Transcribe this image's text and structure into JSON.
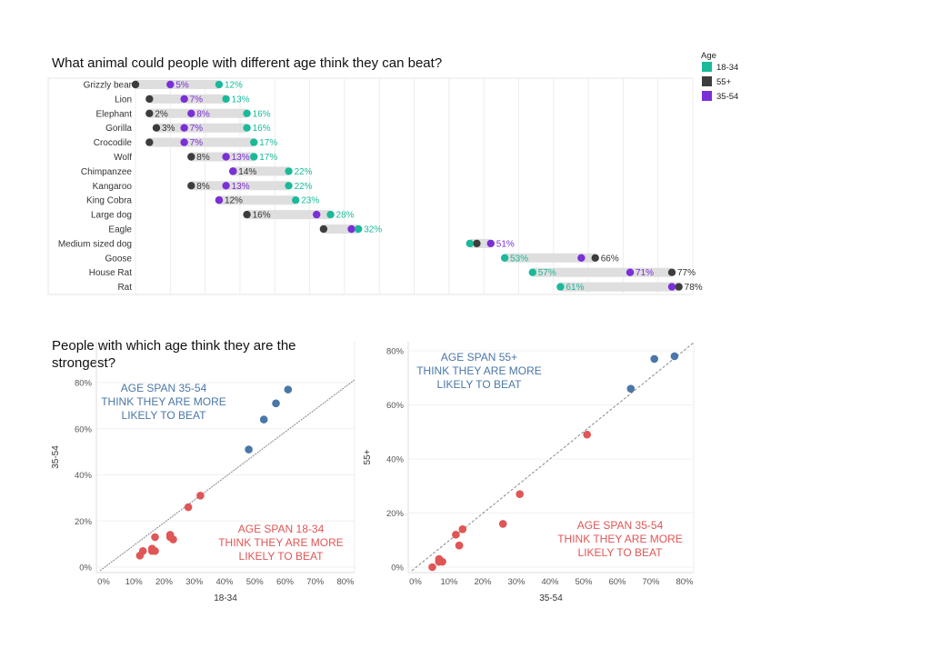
{
  "titles": {
    "top": "What animal could people with different age think they can beat?",
    "bottom_left": "People with which age think they are the strongest?"
  },
  "colors": {
    "18-34": "#1ab99a",
    "55+": "#3d3d3d",
    "35-54": "#7b2fd6",
    "blue": "#4a77a8",
    "red": "#e05656",
    "band": "#dedede"
  },
  "legend": {
    "title": "Age",
    "items": [
      {
        "label": "18-34",
        "color": "#1ab99a"
      },
      {
        "label": "55+",
        "color": "#3d3d3d"
      },
      {
        "label": "35-54",
        "color": "#7b2fd6"
      }
    ]
  },
  "chart_data": [
    {
      "type": "dumbbell",
      "title": "What animal could people with different age think they can beat?",
      "xlim": [
        0,
        80
      ],
      "grid": true,
      "legend_position": "top-right",
      "rows": [
        {
          "animal": "Grizzly bear",
          "a1834": 12,
          "a55": 0,
          "a3554": 5,
          "labels": [
            "5%",
            "12%"
          ]
        },
        {
          "animal": "Lion",
          "a1834": 13,
          "a55": 2,
          "a3554": 7,
          "labels": [
            "7%",
            "13%"
          ]
        },
        {
          "animal": "Elephant",
          "a1834": 16,
          "a55": 2,
          "a3554": 8,
          "labels": [
            "2%",
            "8%",
            "16%"
          ]
        },
        {
          "animal": "Gorilla",
          "a1834": 16,
          "a55": 3,
          "a3554": 7,
          "labels": [
            "3%",
            "7%",
            "16%"
          ]
        },
        {
          "animal": "Crocodile",
          "a1834": 17,
          "a55": 2,
          "a3554": 7,
          "labels": [
            "7%",
            "17%"
          ]
        },
        {
          "animal": "Wolf",
          "a1834": 17,
          "a55": 8,
          "a3554": 13,
          "labels": [
            "8%",
            "13%",
            "17%"
          ]
        },
        {
          "animal": "Chimpanzee",
          "a1834": 22,
          "a55": 14,
          "a3554": 14,
          "labels": [
            "14%",
            "22%"
          ]
        },
        {
          "animal": "Kangaroo",
          "a1834": 22,
          "a55": 8,
          "a3554": 13,
          "labels": [
            "8%",
            "13%",
            "22%"
          ]
        },
        {
          "animal": "King Cobra",
          "a1834": 23,
          "a55": 12,
          "a3554": 12,
          "labels": [
            "12%",
            "23%"
          ]
        },
        {
          "animal": "Large dog",
          "a1834": 28,
          "a55": 16,
          "a3554": 26,
          "labels": [
            "16%",
            "28%"
          ]
        },
        {
          "animal": "Eagle",
          "a1834": 32,
          "a55": 27,
          "a3554": 31,
          "labels": [
            "32%"
          ]
        },
        {
          "animal": "Medium sized dog",
          "a1834": 48,
          "a55": 49,
          "a3554": 51,
          "labels": [
            "51%"
          ]
        },
        {
          "animal": "Goose",
          "a1834": 53,
          "a55": 66,
          "a3554": 64,
          "labels": [
            "53%",
            "66%"
          ]
        },
        {
          "animal": "House Rat",
          "a1834": 57,
          "a55": 77,
          "a3554": 71,
          "labels": [
            "57%",
            "71%",
            "77%"
          ]
        },
        {
          "animal": "Rat",
          "a1834": 61,
          "a55": 78,
          "a3554": 77,
          "labels": [
            "61%",
            "78%"
          ]
        }
      ]
    },
    {
      "type": "scatter",
      "x_label": "18-34",
      "y_label": "35-54",
      "xlim": [
        0,
        80
      ],
      "ylim": [
        0,
        80
      ],
      "x_ticks": [
        "0%",
        "10%",
        "20%",
        "30%",
        "40%",
        "50%",
        "60%",
        "70%",
        "80%"
      ],
      "y_ticks": [
        "0%",
        "20%",
        "40%",
        "60%",
        "80%"
      ],
      "diagonal": true,
      "annotations": [
        {
          "text": [
            "AGE SPAN 35-54",
            "THINK THEY ARE MORE",
            "LIKELY TO BEAT"
          ],
          "color": "#4a77a8",
          "position": "top-left"
        },
        {
          "text": [
            "AGE SPAN 18-34",
            "THINK THEY ARE MORE",
            "LIKELY TO BEAT"
          ],
          "color": "#e05656",
          "position": "bottom-right"
        }
      ],
      "points": [
        [
          12,
          5,
          "red"
        ],
        [
          13,
          7,
          "red"
        ],
        [
          16,
          8,
          "red"
        ],
        [
          16,
          7,
          "red"
        ],
        [
          17,
          7,
          "red"
        ],
        [
          17,
          13,
          "red"
        ],
        [
          22,
          14,
          "red"
        ],
        [
          22,
          13,
          "red"
        ],
        [
          23,
          12,
          "red"
        ],
        [
          28,
          26,
          "red"
        ],
        [
          32,
          31,
          "red"
        ],
        [
          48,
          51,
          "blue"
        ],
        [
          53,
          64,
          "blue"
        ],
        [
          57,
          71,
          "blue"
        ],
        [
          61,
          77,
          "blue"
        ]
      ]
    },
    {
      "type": "scatter",
      "x_label": "35-54",
      "y_label": "55+",
      "xlim": [
        0,
        80
      ],
      "ylim": [
        0,
        80
      ],
      "x_ticks": [
        "0%",
        "10%",
        "20%",
        "30%",
        "40%",
        "50%",
        "60%",
        "70%",
        "80%"
      ],
      "y_ticks": [
        "0%",
        "20%",
        "40%",
        "60%",
        "80%"
      ],
      "diagonal": true,
      "annotations": [
        {
          "text": [
            "AGE SPAN 55+",
            "THINK THEY ARE MORE",
            "LIKELY TO BEAT"
          ],
          "color": "#4a77a8",
          "position": "top-left"
        },
        {
          "text": [
            "AGE SPAN 35-54",
            "THINK THEY ARE MORE",
            "LIKELY TO BEAT"
          ],
          "color": "#e05656",
          "position": "bottom-right"
        }
      ],
      "points": [
        [
          5,
          0,
          "red"
        ],
        [
          7,
          2,
          "red"
        ],
        [
          8,
          2,
          "red"
        ],
        [
          7,
          3,
          "red"
        ],
        [
          7,
          2,
          "red"
        ],
        [
          13,
          8,
          "red"
        ],
        [
          14,
          14,
          "red"
        ],
        [
          13,
          8,
          "red"
        ],
        [
          12,
          12,
          "red"
        ],
        [
          26,
          16,
          "red"
        ],
        [
          31,
          27,
          "red"
        ],
        [
          51,
          49,
          "red"
        ],
        [
          64,
          66,
          "blue"
        ],
        [
          71,
          77,
          "blue"
        ],
        [
          77,
          78,
          "blue"
        ]
      ]
    }
  ]
}
